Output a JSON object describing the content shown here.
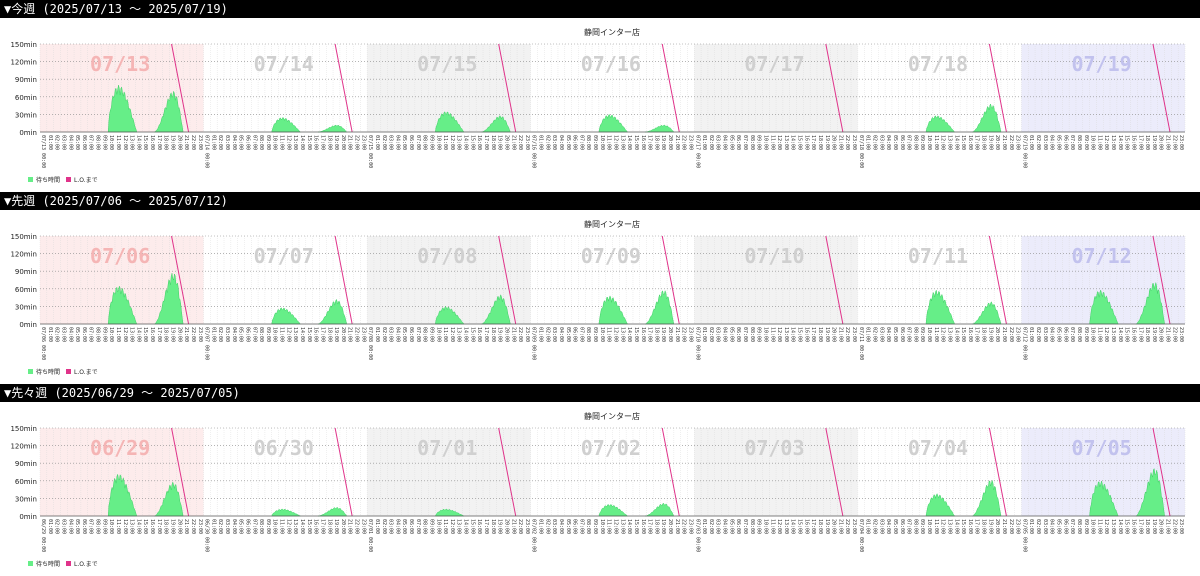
{
  "weeks": [
    {
      "heading": "▼今週 (2025/07/13 〜 2025/07/19)",
      "chart_title": "静岡インター店",
      "days": [
        "07/13",
        "07/14",
        "07/15",
        "07/16",
        "07/17",
        "07/18",
        "07/19"
      ],
      "y_ticks": [
        "150min",
        "120min",
        "90min",
        "60min",
        "30min",
        "0min"
      ],
      "legend": {
        "wait": "待ち時間",
        "lo": "L.O.まで"
      },
      "peaks": [
        [
          80,
          70
        ],
        [
          25,
          12
        ],
        [
          35,
          28
        ],
        [
          30,
          12
        ],
        [
          0,
          0
        ],
        [
          28,
          48
        ],
        [
          0,
          0
        ]
      ],
      "lunch_only": [
        false,
        false,
        false,
        false,
        false,
        false,
        false
      ]
    },
    {
      "heading": "▼先週 (2025/07/06 〜 2025/07/12)",
      "chart_title": "静岡インター店",
      "days": [
        "07/06",
        "07/07",
        "07/08",
        "07/09",
        "07/10",
        "07/11",
        "07/12"
      ],
      "y_ticks": [
        "150min",
        "120min",
        "90min",
        "60min",
        "30min",
        "0min"
      ],
      "legend": {
        "wait": "待ち時間",
        "lo": "L.O.まで"
      },
      "peaks": [
        [
          65,
          88
        ],
        [
          28,
          42
        ],
        [
          30,
          50
        ],
        [
          48,
          58
        ],
        [
          0,
          0
        ],
        [
          58,
          38
        ],
        [
          58,
          72
        ]
      ],
      "lunch_only": [
        false,
        false,
        false,
        false,
        false,
        false,
        false
      ]
    },
    {
      "heading": "▼先々週 (2025/06/29 〜 2025/07/05)",
      "chart_title": "静岡インター店",
      "days": [
        "06/29",
        "06/30",
        "07/01",
        "07/02",
        "07/03",
        "07/04",
        "07/05"
      ],
      "y_ticks": [
        "150min",
        "120min",
        "90min",
        "60min",
        "30min",
        "0min"
      ],
      "legend": {
        "wait": "待ち時間",
        "lo": "L.O.まで"
      },
      "peaks": [
        [
          72,
          58
        ],
        [
          12,
          15
        ],
        [
          12,
          0
        ],
        [
          20,
          22
        ],
        [
          0,
          0
        ],
        [
          38,
          62
        ],
        [
          60,
          82
        ]
      ],
      "lunch_only": [
        false,
        false,
        false,
        false,
        false,
        false,
        false
      ]
    }
  ],
  "colors": {
    "sunday_bg": "#fdecec",
    "weekday_bg": "#ffffff",
    "alt_bg": "#f2f2f2",
    "saturday_bg": "#ececfb",
    "wait_fill": "#66ee88",
    "lo_line": "#e0338a",
    "day_label_sun": "#f5b5b5",
    "day_label_wkd": "#d0d0d0",
    "day_label_sat": "#c2c2ee"
  },
  "chart_data": [
    {
      "type": "area",
      "title": "静岡インター店",
      "x_categories": [
        "07/13",
        "07/14",
        "07/15",
        "07/16",
        "07/17",
        "07/18",
        "07/19"
      ],
      "ylim": [
        0,
        150
      ],
      "y_unit": "min",
      "series": [
        {
          "name": "待ち時間",
          "approx_peak_per_day_lunch_dinner": [
            [
              80,
              70
            ],
            [
              25,
              12
            ],
            [
              35,
              28
            ],
            [
              30,
              12
            ],
            [
              0,
              0
            ],
            [
              28,
              48
            ],
            [
              0,
              0
            ]
          ]
        },
        {
          "name": "L.O.まで"
        }
      ],
      "legend": "bottom-left",
      "grid": true
    },
    {
      "type": "area",
      "title": "静岡インター店",
      "x_categories": [
        "07/06",
        "07/07",
        "07/08",
        "07/09",
        "07/10",
        "07/11",
        "07/12"
      ],
      "ylim": [
        0,
        150
      ],
      "y_unit": "min",
      "series": [
        {
          "name": "待ち時間",
          "approx_peak_per_day_lunch_dinner": [
            [
              65,
              88
            ],
            [
              28,
              42
            ],
            [
              30,
              50
            ],
            [
              48,
              58
            ],
            [
              0,
              0
            ],
            [
              58,
              38
            ],
            [
              58,
              72
            ]
          ]
        },
        {
          "name": "L.O.まで"
        }
      ],
      "legend": "bottom-left",
      "grid": true
    },
    {
      "type": "area",
      "title": "静岡インター店",
      "x_categories": [
        "06/29",
        "06/30",
        "07/01",
        "07/02",
        "07/03",
        "07/04",
        "07/05"
      ],
      "ylim": [
        0,
        150
      ],
      "y_unit": "min",
      "series": [
        {
          "name": "待ち時間",
          "approx_peak_per_day_lunch_dinner": [
            [
              72,
              58
            ],
            [
              12,
              15
            ],
            [
              12,
              0
            ],
            [
              20,
              22
            ],
            [
              0,
              0
            ],
            [
              38,
              62
            ],
            [
              60,
              82
            ]
          ]
        },
        {
          "name": "L.O.まで"
        }
      ],
      "legend": "bottom-left",
      "grid": true
    }
  ]
}
